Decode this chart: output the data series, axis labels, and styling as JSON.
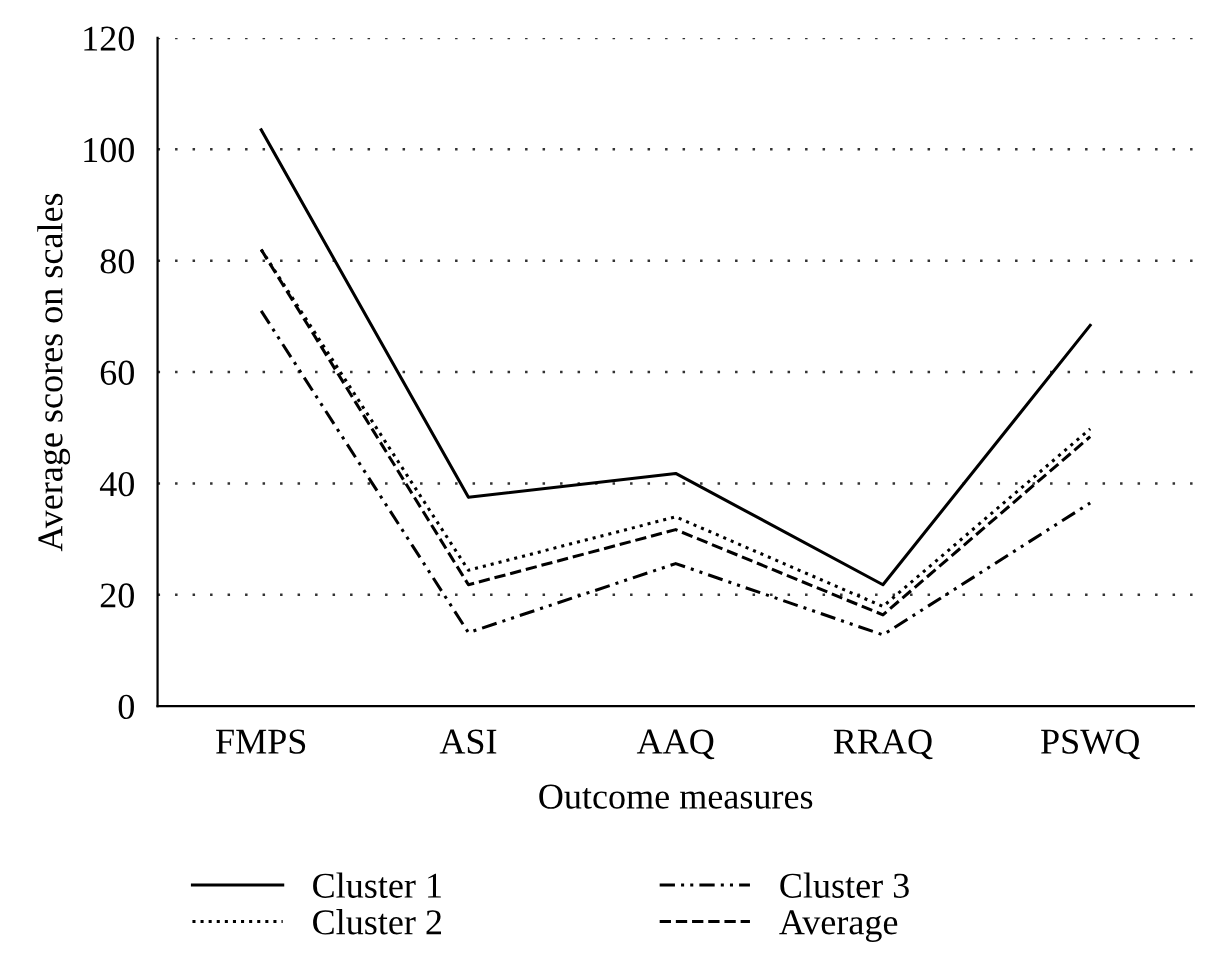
{
  "chart_data": {
    "type": "line",
    "xlabel": "Outcome measures",
    "ylabel": "Average scores on scales",
    "categories": [
      "FMPS",
      "ASI",
      "AAQ",
      "RRAQ",
      "PSWQ"
    ],
    "series": [
      {
        "name": "Cluster 1",
        "color": "#000000",
        "line_style": "solid",
        "values": [
          103.5,
          37.5,
          41.8,
          21.8,
          68.4
        ]
      },
      {
        "name": "Cluster 2",
        "color": "#000000",
        "line_style": "dotted",
        "values": [
          82,
          24.4,
          34,
          17.9,
          49.8
        ]
      },
      {
        "name": "Cluster 3",
        "color": "#000000",
        "line_style": "dashdot",
        "values": [
          71,
          13.2,
          25.6,
          12.8,
          36.5
        ]
      },
      {
        "name": "Average",
        "color": "#000000",
        "line_style": "dashed",
        "values": [
          82,
          21.8,
          31.7,
          16.4,
          48.4
        ]
      }
    ],
    "ylim": [
      0,
      120
    ],
    "yticks": [
      0,
      20,
      40,
      60,
      80,
      100,
      120
    ],
    "grid": "y",
    "legend": "bottom",
    "marker": "none"
  }
}
